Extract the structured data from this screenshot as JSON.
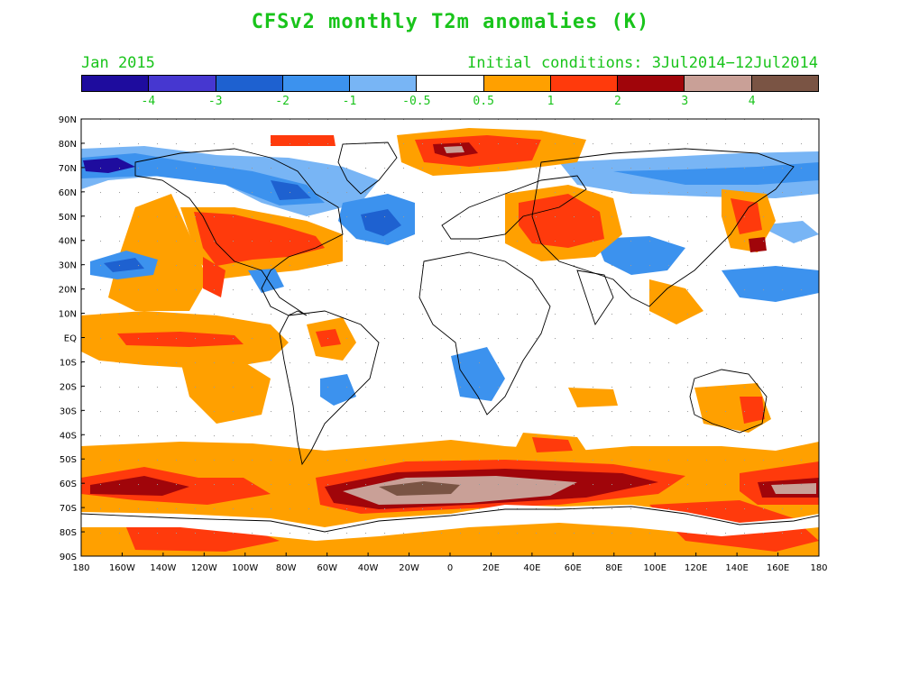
{
  "title": "CFSv2 monthly T2m anomalies (K)",
  "month": "Jan 2015",
  "initial_conditions": "Initial conditions: 3Jul2014−12Jul2014",
  "colorbar": {
    "colors": [
      "#1e0c9e",
      "#4637d0",
      "#1e61d0",
      "#3c92ee",
      "#78b5f5",
      "#ffffff",
      "#ffa000",
      "#ff3a0c",
      "#a0050a",
      "#c9a097",
      "#7a5444"
    ],
    "labels": [
      "-4",
      "-3",
      "-2",
      "-1",
      "-0.5",
      "0.5",
      "1",
      "2",
      "3",
      "4"
    ]
  },
  "lat_labels": [
    "90N",
    "80N",
    "70N",
    "60N",
    "50N",
    "40N",
    "30N",
    "20N",
    "10N",
    "EQ",
    "10S",
    "20S",
    "30S",
    "40S",
    "50S",
    "60S",
    "70S",
    "80S",
    "90S"
  ],
  "lon_labels": [
    "180",
    "160W",
    "140W",
    "120W",
    "100W",
    "80W",
    "60W",
    "40W",
    "20W",
    "0",
    "20E",
    "40E",
    "60E",
    "80E",
    "100E",
    "120E",
    "140E",
    "160E",
    "180"
  ]
}
